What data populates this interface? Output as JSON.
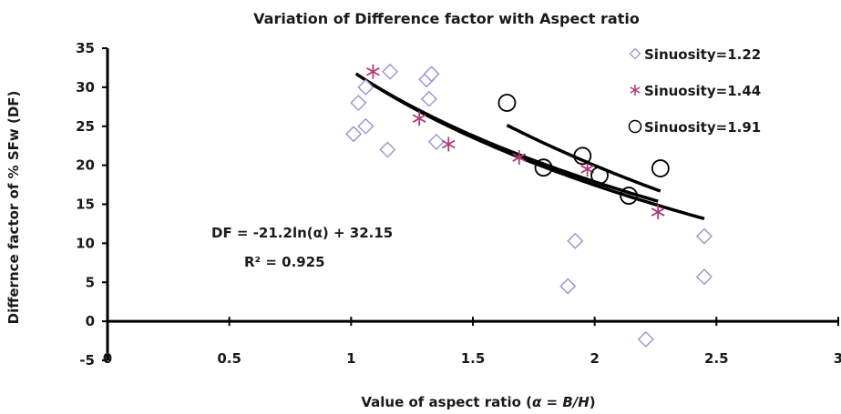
{
  "chart_data": {
    "type": "scatter",
    "title": "Variation of Difference factor with Aspect ratio",
    "xlabel_parts": {
      "prefix": "Value of aspect ratio (",
      "alpha": "α",
      "middle": " = ",
      "ratio": "B/H",
      "suffix": ")"
    },
    "ylabel": "Differnce factor of  % SFw (DF)",
    "xlim": [
      0,
      3
    ],
    "ylim": [
      -5,
      35
    ],
    "x_ticks": [
      "0",
      "0.5",
      "1",
      "1.5",
      "2",
      "2.5",
      "3"
    ],
    "y_ticks": [
      "-5",
      "0",
      "5",
      "10",
      "15",
      "20",
      "25",
      "30",
      "35"
    ],
    "grid": false,
    "legend_position": "top-right",
    "series": [
      {
        "name": "Sinuosity=1.22",
        "marker": "diamond",
        "color": "#9a9ad6",
        "points": [
          [
            1.01,
            24.0
          ],
          [
            1.03,
            28.0
          ],
          [
            1.06,
            25.0
          ],
          [
            1.06,
            30.0
          ],
          [
            1.15,
            22.0
          ],
          [
            1.16,
            32.0
          ],
          [
            1.31,
            31.0
          ],
          [
            1.32,
            28.5
          ],
          [
            1.33,
            31.7
          ],
          [
            1.35,
            23.0
          ],
          [
            1.89,
            4.5
          ],
          [
            1.92,
            10.3
          ],
          [
            2.21,
            -2.3
          ],
          [
            2.45,
            10.9
          ],
          [
            2.45,
            5.7
          ]
        ]
      },
      {
        "name": "Sinuosity=1.44",
        "marker": "asterisk",
        "color": "#b03a78",
        "points": [
          [
            1.09,
            32.0
          ],
          [
            1.28,
            26.0
          ],
          [
            1.4,
            22.7
          ],
          [
            1.69,
            21.0
          ],
          [
            1.97,
            19.5
          ],
          [
            2.26,
            14.0
          ]
        ]
      },
      {
        "name": "Sinuosity=1.91",
        "marker": "circle",
        "color": "#000000",
        "points": [
          [
            1.64,
            28.0
          ],
          [
            1.79,
            19.7
          ],
          [
            1.95,
            21.2
          ],
          [
            2.02,
            18.7
          ],
          [
            2.14,
            16.1
          ],
          [
            2.27,
            19.6
          ]
        ]
      }
    ],
    "trendlines": [
      {
        "x_range": [
          1.02,
          2.45
        ],
        "model": "logarithmic",
        "a": -21.2,
        "b": 32.15,
        "label": "DF = -21.2ln(α) + 32.15",
        "r2_label": "R² = 0.925"
      },
      {
        "x_range": [
          1.09,
          2.26
        ],
        "model": "logarithmic",
        "a": -20.5,
        "b": 32.1
      },
      {
        "x_range": [
          1.64,
          2.27
        ],
        "model": "logarithmic",
        "a": -26.0,
        "b": 38.0
      }
    ],
    "annotations": {
      "equation": "DF = -21.2ln(α) + 32.15",
      "r_squared": "R² = 0.925"
    }
  }
}
